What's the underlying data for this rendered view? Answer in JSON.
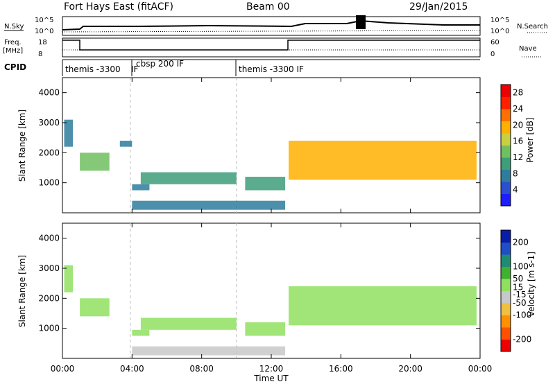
{
  "header": {
    "station": "Fort Hays East (fitACF)",
    "beam": "Beam 00",
    "date": "29/Jan/2015"
  },
  "summary_panels": {
    "nsky_label": "N.Sky",
    "nsearch_label": "N.Search",
    "freq_label_line1": "Freq.",
    "freq_label_line2": "[MHz]",
    "nave_label": "Nave",
    "cpid_label": "CPID",
    "noise_ticks_left": [
      "10^5",
      "10^0"
    ],
    "noise_ticks_right": [
      "10^5",
      "10^0"
    ],
    "freq_ticks": [
      "18",
      "8"
    ],
    "nave_ticks": [
      "60",
      "0"
    ],
    "cpid_segments": [
      {
        "label": "themis -3300",
        "start_hour": 0
      },
      {
        "label": "IF",
        "start_hour": 3.9
      },
      {
        "label": "cbsp 200 IF",
        "start_hour": 3.9
      },
      {
        "label": "themis -3300 IF",
        "start_hour": 10
      }
    ]
  },
  "colors": {
    "power_scale": [
      "#1d1dff",
      "#2a4fd0",
      "#2e7d9e",
      "#3e9e7a",
      "#70c060",
      "#c8d040",
      "#ffb000",
      "#ff7000",
      "#ff2000",
      "#ee0000"
    ],
    "velocity_scale": [
      "#0a1da8",
      "#1e4fc8",
      "#1e8c70",
      "#40b030",
      "#90e060",
      "#c8c8c8",
      "#f0c040",
      "#ff9000",
      "#ff5000",
      "#ee0000"
    ]
  },
  "chart_data": [
    {
      "type": "heatmap",
      "title": "",
      "xlabel": "",
      "ylabel": "Slant Range [km]",
      "xlim": [
        0,
        24
      ],
      "ylim": [
        0,
        4500
      ],
      "x_ticks": [
        "00:00",
        "04:00",
        "08:00",
        "12:00",
        "16:00",
        "20:00",
        "00:00"
      ],
      "y_ticks": [
        1000,
        2000,
        3000,
        4000
      ],
      "colorbar": {
        "label": "Power [dB]",
        "ticks": [
          4,
          8,
          12,
          16,
          20,
          24,
          28
        ],
        "range": [
          0,
          30
        ]
      },
      "regions": [
        {
          "t0": 0.1,
          "t1": 0.6,
          "r0": 2200,
          "r1": 3100,
          "value": 6
        },
        {
          "t0": 1.0,
          "t1": 2.7,
          "r0": 1400,
          "r1": 2000,
          "value": 14
        },
        {
          "t0": 3.3,
          "t1": 4.0,
          "r0": 2200,
          "r1": 2400,
          "value": 7
        },
        {
          "t0": 4.0,
          "t1": 5.0,
          "r0": 750,
          "r1": 950,
          "value": 8
        },
        {
          "t0": 4.5,
          "t1": 10.0,
          "r0": 950,
          "r1": 1350,
          "value": 9
        },
        {
          "t0": 10.5,
          "t1": 12.8,
          "r0": 750,
          "r1": 1200,
          "value": 11
        },
        {
          "t0": 13.0,
          "t1": 23.8,
          "r0": 1100,
          "r1": 2400,
          "value": 18
        },
        {
          "t0": 4.0,
          "t1": 12.8,
          "r0": 100,
          "r1": 400,
          "value": 6
        }
      ]
    },
    {
      "type": "heatmap",
      "title": "",
      "xlabel": "Time UT",
      "ylabel": "Slant Range [km]",
      "xlim": [
        0,
        24
      ],
      "ylim": [
        0,
        4500
      ],
      "x_ticks": [
        "00:00",
        "04:00",
        "08:00",
        "12:00",
        "16:00",
        "20:00",
        "00:00"
      ],
      "y_ticks": [
        1000,
        2000,
        3000,
        4000
      ],
      "colorbar": {
        "label": "Velocity [m s-1]",
        "ticks": [
          200,
          100,
          50,
          15,
          -15,
          -50,
          -100,
          -200
        ],
        "range": [
          -250,
          250
        ]
      },
      "regions": [
        {
          "t0": 0.1,
          "t1": 0.6,
          "r0": 2200,
          "r1": 3100,
          "value": 0
        },
        {
          "t0": 1.0,
          "t1": 2.7,
          "r0": 1400,
          "r1": 2000,
          "value": 0
        },
        {
          "t0": 4.0,
          "t1": 5.0,
          "r0": 750,
          "r1": 950,
          "value": 40
        },
        {
          "t0": 4.5,
          "t1": 10.0,
          "r0": 950,
          "r1": 1350,
          "value": 30
        },
        {
          "t0": 10.5,
          "t1": 12.8,
          "r0": 750,
          "r1": 1200,
          "value": 0
        },
        {
          "t0": 13.0,
          "t1": 23.8,
          "r0": 1100,
          "r1": 2400,
          "value": 0
        },
        {
          "t0": 4.0,
          "t1": 12.8,
          "r0": 100,
          "r1": 400,
          "value": -40
        }
      ]
    }
  ]
}
